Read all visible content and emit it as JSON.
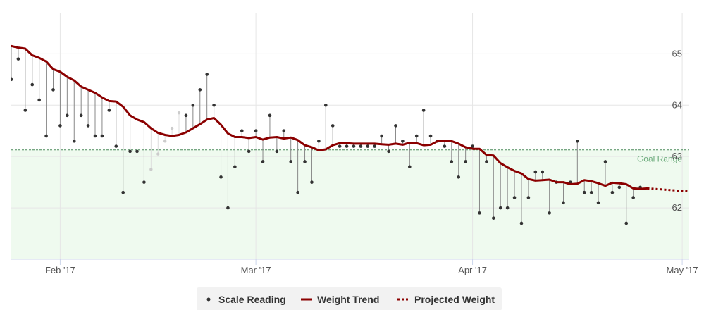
{
  "chart_data": {
    "type": "line",
    "x_ticks": [
      {
        "date": "2017-02-01",
        "label": "Feb '17"
      },
      {
        "date": "2017-03-01",
        "label": "Mar '17"
      },
      {
        "date": "2017-04-01",
        "label": "Apr '17"
      },
      {
        "date": "2017-05-01",
        "label": "May '17"
      }
    ],
    "y_ticks": [
      62,
      63,
      64,
      65
    ],
    "xlim": [
      "2017-01-25",
      "2017-05-02"
    ],
    "ylim": [
      61.0,
      65.8
    ],
    "grid": true,
    "goal_range": {
      "label": "Goal Range",
      "min": 61.0,
      "max": 63.13
    },
    "legend_position": "bottom-center",
    "legend": [
      {
        "label": "Scale Reading",
        "style": "dot"
      },
      {
        "label": "Weight Trend",
        "style": "line"
      },
      {
        "label": "Projected Weight",
        "style": "dotted-line"
      }
    ],
    "colors": {
      "trend": "#8b0000",
      "reading": "#333333",
      "stem": "#888888",
      "goal_fill": "#effaef",
      "goal_line": "#4a8a5a"
    },
    "series": [
      {
        "name": "Weight Trend",
        "points": [
          [
            "2017-01-25",
            65.15
          ],
          [
            "2017-01-26",
            65.12
          ],
          [
            "2017-01-27",
            65.1
          ],
          [
            "2017-01-28",
            64.97
          ],
          [
            "2017-01-29",
            64.92
          ],
          [
            "2017-01-30",
            64.85
          ],
          [
            "2017-01-31",
            64.7
          ],
          [
            "2017-02-01",
            64.65
          ],
          [
            "2017-02-02",
            64.55
          ],
          [
            "2017-02-03",
            64.48
          ],
          [
            "2017-02-04",
            64.36
          ],
          [
            "2017-02-05",
            64.3
          ],
          [
            "2017-02-06",
            64.24
          ],
          [
            "2017-02-07",
            64.15
          ],
          [
            "2017-02-08",
            64.08
          ],
          [
            "2017-02-09",
            64.07
          ],
          [
            "2017-02-10",
            63.97
          ],
          [
            "2017-02-11",
            63.8
          ],
          [
            "2017-02-12",
            63.72
          ],
          [
            "2017-02-13",
            63.67
          ],
          [
            "2017-02-14",
            63.55
          ],
          [
            "2017-02-15",
            63.46
          ],
          [
            "2017-02-16",
            63.42
          ],
          [
            "2017-02-17",
            63.4
          ],
          [
            "2017-02-18",
            63.42
          ],
          [
            "2017-02-19",
            63.47
          ],
          [
            "2017-02-20",
            63.55
          ],
          [
            "2017-02-21",
            63.63
          ],
          [
            "2017-02-22",
            63.72
          ],
          [
            "2017-02-23",
            63.75
          ],
          [
            "2017-02-24",
            63.62
          ],
          [
            "2017-02-25",
            63.45
          ],
          [
            "2017-02-26",
            63.38
          ],
          [
            "2017-02-27",
            63.38
          ],
          [
            "2017-02-28",
            63.36
          ],
          [
            "2017-03-01",
            63.38
          ],
          [
            "2017-03-02",
            63.33
          ],
          [
            "2017-03-03",
            63.37
          ],
          [
            "2017-03-04",
            63.38
          ],
          [
            "2017-03-05",
            63.35
          ],
          [
            "2017-03-06",
            63.37
          ],
          [
            "2017-03-07",
            63.32
          ],
          [
            "2017-03-08",
            63.22
          ],
          [
            "2017-03-09",
            63.18
          ],
          [
            "2017-03-10",
            63.12
          ],
          [
            "2017-03-11",
            63.14
          ],
          [
            "2017-03-12",
            63.22
          ],
          [
            "2017-03-13",
            63.26
          ],
          [
            "2017-03-14",
            63.26
          ],
          [
            "2017-03-15",
            63.25
          ],
          [
            "2017-03-16",
            63.25
          ],
          [
            "2017-03-17",
            63.25
          ],
          [
            "2017-03-18",
            63.25
          ],
          [
            "2017-03-19",
            63.24
          ],
          [
            "2017-03-20",
            63.23
          ],
          [
            "2017-03-21",
            63.25
          ],
          [
            "2017-03-22",
            63.23
          ],
          [
            "2017-03-23",
            63.27
          ],
          [
            "2017-03-24",
            63.26
          ],
          [
            "2017-03-25",
            63.22
          ],
          [
            "2017-03-26",
            63.23
          ],
          [
            "2017-03-27",
            63.3
          ],
          [
            "2017-03-28",
            63.31
          ],
          [
            "2017-03-29",
            63.3
          ],
          [
            "2017-03-30",
            63.25
          ],
          [
            "2017-03-31",
            63.18
          ],
          [
            "2017-04-01",
            63.15
          ],
          [
            "2017-04-02",
            63.15
          ],
          [
            "2017-04-03",
            63.03
          ],
          [
            "2017-04-04",
            63.02
          ],
          [
            "2017-04-05",
            62.87
          ],
          [
            "2017-04-06",
            62.79
          ],
          [
            "2017-04-07",
            62.72
          ],
          [
            "2017-04-08",
            62.67
          ],
          [
            "2017-04-09",
            62.56
          ],
          [
            "2017-04-10",
            62.53
          ],
          [
            "2017-04-11",
            62.54
          ],
          [
            "2017-04-12",
            62.55
          ],
          [
            "2017-04-13",
            62.5
          ],
          [
            "2017-04-14",
            62.5
          ],
          [
            "2017-04-15",
            62.46
          ],
          [
            "2017-04-16",
            62.47
          ],
          [
            "2017-04-17",
            62.54
          ],
          [
            "2017-04-18",
            62.52
          ],
          [
            "2017-04-19",
            62.48
          ],
          [
            "2017-04-20",
            62.43
          ],
          [
            "2017-04-21",
            62.49
          ],
          [
            "2017-04-22",
            62.48
          ],
          [
            "2017-04-23",
            62.46
          ],
          [
            "2017-04-24",
            62.38
          ],
          [
            "2017-04-25",
            62.37
          ],
          [
            "2017-04-26",
            62.38
          ]
        ]
      },
      {
        "name": "Projected Weight",
        "points": [
          [
            "2017-04-26",
            62.38
          ],
          [
            "2017-04-28",
            62.36
          ],
          [
            "2017-04-30",
            62.34
          ],
          [
            "2017-05-02",
            62.32
          ]
        ]
      },
      {
        "name": "Scale Reading",
        "points": [
          [
            "2017-01-25",
            64.5
          ],
          [
            "2017-01-26",
            64.9
          ],
          [
            "2017-01-27",
            63.9
          ],
          [
            "2017-01-28",
            64.4
          ],
          [
            "2017-01-29",
            64.1
          ],
          [
            "2017-01-30",
            63.4
          ],
          [
            "2017-01-31",
            64.3
          ],
          [
            "2017-02-01",
            63.6
          ],
          [
            "2017-02-02",
            63.8
          ],
          [
            "2017-02-03",
            63.3
          ],
          [
            "2017-02-04",
            63.8
          ],
          [
            "2017-02-05",
            63.6
          ],
          [
            "2017-02-06",
            63.4
          ],
          [
            "2017-02-07",
            63.4
          ],
          [
            "2017-02-08",
            63.9
          ],
          [
            "2017-02-09",
            63.2
          ],
          [
            "2017-02-10",
            62.3
          ],
          [
            "2017-02-11",
            63.1
          ],
          [
            "2017-02-12",
            63.1
          ],
          [
            "2017-02-13",
            62.5
          ],
          [
            "2017-02-19",
            63.8
          ],
          [
            "2017-02-20",
            64.0
          ],
          [
            "2017-02-21",
            64.3
          ],
          [
            "2017-02-22",
            64.6
          ],
          [
            "2017-02-23",
            64.0
          ],
          [
            "2017-02-24",
            62.6
          ],
          [
            "2017-02-25",
            62.0
          ],
          [
            "2017-02-26",
            62.8
          ],
          [
            "2017-02-27",
            63.5
          ],
          [
            "2017-02-28",
            63.1
          ],
          [
            "2017-03-01",
            63.5
          ],
          [
            "2017-03-02",
            62.9
          ],
          [
            "2017-03-03",
            63.8
          ],
          [
            "2017-03-04",
            63.1
          ],
          [
            "2017-03-05",
            63.5
          ],
          [
            "2017-03-06",
            62.9
          ],
          [
            "2017-03-07",
            62.3
          ],
          [
            "2017-03-08",
            62.9
          ],
          [
            "2017-03-09",
            62.5
          ],
          [
            "2017-03-10",
            63.3
          ],
          [
            "2017-03-11",
            64.0
          ],
          [
            "2017-03-12",
            63.6
          ],
          [
            "2017-03-13",
            63.2
          ],
          [
            "2017-03-14",
            63.2
          ],
          [
            "2017-03-15",
            63.2
          ],
          [
            "2017-03-16",
            63.2
          ],
          [
            "2017-03-17",
            63.2
          ],
          [
            "2017-03-18",
            63.2
          ],
          [
            "2017-03-19",
            63.4
          ],
          [
            "2017-03-20",
            63.1
          ],
          [
            "2017-03-21",
            63.6
          ],
          [
            "2017-03-22",
            63.3
          ],
          [
            "2017-03-23",
            62.8
          ],
          [
            "2017-03-24",
            63.4
          ],
          [
            "2017-03-25",
            63.9
          ],
          [
            "2017-03-26",
            63.4
          ],
          [
            "2017-03-27",
            63.3
          ],
          [
            "2017-03-28",
            63.2
          ],
          [
            "2017-03-29",
            62.9
          ],
          [
            "2017-03-30",
            62.6
          ],
          [
            "2017-03-31",
            62.9
          ],
          [
            "2017-04-01",
            63.2
          ],
          [
            "2017-04-02",
            61.9
          ],
          [
            "2017-04-03",
            62.9
          ],
          [
            "2017-04-04",
            61.8
          ],
          [
            "2017-04-05",
            62.0
          ],
          [
            "2017-04-06",
            62.0
          ],
          [
            "2017-04-07",
            62.2
          ],
          [
            "2017-04-08",
            61.7
          ],
          [
            "2017-04-09",
            62.2
          ],
          [
            "2017-04-10",
            62.7
          ],
          [
            "2017-04-11",
            62.7
          ],
          [
            "2017-04-12",
            61.9
          ],
          [
            "2017-04-13",
            62.5
          ],
          [
            "2017-04-14",
            62.1
          ],
          [
            "2017-04-15",
            62.5
          ],
          [
            "2017-04-16",
            63.3
          ],
          [
            "2017-04-17",
            62.3
          ],
          [
            "2017-04-18",
            62.3
          ],
          [
            "2017-04-19",
            62.1
          ],
          [
            "2017-04-20",
            62.9
          ],
          [
            "2017-04-21",
            62.3
          ],
          [
            "2017-04-22",
            62.4
          ],
          [
            "2017-04-23",
            61.7
          ],
          [
            "2017-04-24",
            62.2
          ],
          [
            "2017-04-25",
            62.4
          ]
        ]
      },
      {
        "name": "Scale Reading (faded)",
        "points": [
          [
            "2017-02-14",
            62.75
          ],
          [
            "2017-02-15",
            63.05
          ],
          [
            "2017-02-16",
            63.3
          ],
          [
            "2017-02-17",
            63.55
          ],
          [
            "2017-02-18",
            63.85
          ]
        ]
      }
    ]
  }
}
